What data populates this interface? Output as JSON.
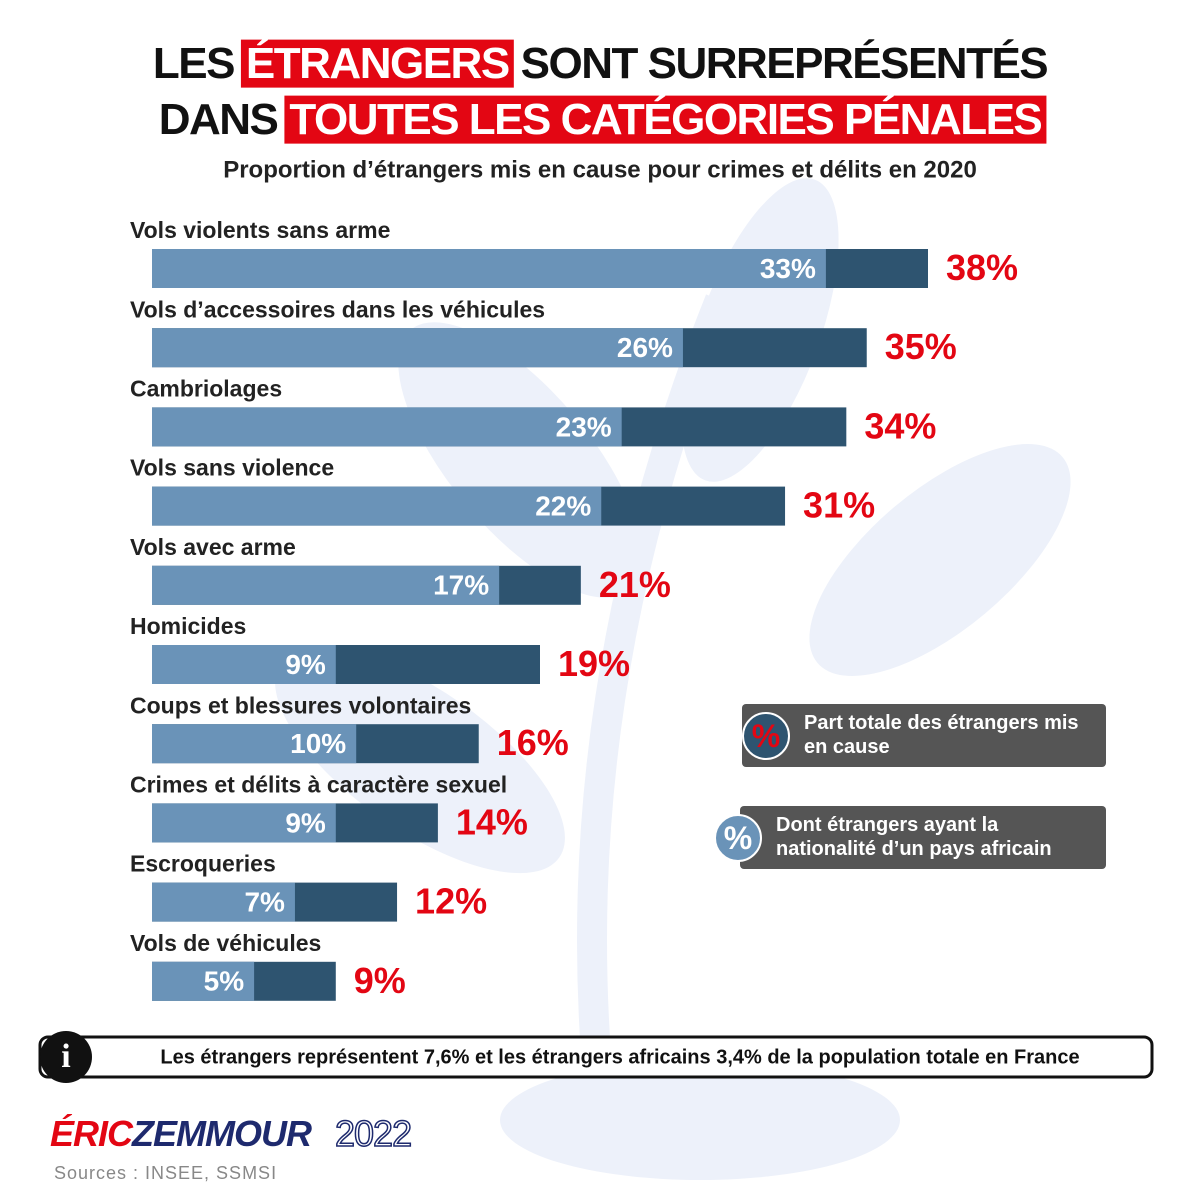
{
  "chart_data": {
    "type": "bar",
    "orientation": "horizontal",
    "title_lines": [
      [
        {
          "text": "LES",
          "highlight": false
        },
        {
          "text": "ÉTRANGERS",
          "highlight": true
        },
        {
          "text": "SONT SURREPRÉSENTÉS",
          "highlight": false
        }
      ],
      [
        {
          "text": "DANS",
          "highlight": false
        },
        {
          "text": "TOUTES LES CATÉGORIES PÉNALES",
          "highlight": true
        }
      ]
    ],
    "subtitle": "Proportion d’étrangers mis en cause pour crimes et délits en 2020",
    "categories": [
      "Vols violents sans arme",
      "Vols d’accessoires dans les véhicules",
      "Cambriolages",
      "Vols sans violence",
      "Vols avec arme",
      "Homicides",
      "Coups et blessures volontaires",
      "Crimes et délits à caractère sexuel",
      "Escroqueries",
      "Vols de véhicules"
    ],
    "series": [
      {
        "name": "Part totale des étrangers mis en cause",
        "color": "#2e5470",
        "label_color": "#e30613",
        "values": [
          38,
          35,
          34,
          31,
          21,
          19,
          16,
          14,
          12,
          9
        ],
        "value_labels": [
          "38%",
          "35%",
          "34%",
          "31%",
          "21%",
          "19%",
          "16%",
          "14%",
          "12%",
          "9%"
        ]
      },
      {
        "name": "Dont étrangers ayant la nationalité d’un pays africain",
        "color": "#6a93b8",
        "label_color": "#ffffff",
        "values": [
          33,
          26,
          23,
          22,
          17,
          9,
          10,
          9,
          7,
          5
        ],
        "value_labels": [
          "33%",
          "26%",
          "23%",
          "22%",
          "17%",
          "9%",
          "10%",
          "9%",
          "7%",
          "5%"
        ]
      }
    ],
    "legend_symbol": "%",
    "note_icon": "i",
    "note": "Les étrangers représentent 7,6% et les étrangers africains 3,4% de la population totale en France",
    "logo": {
      "first": "ÉRIC",
      "last": "ZEMMOUR",
      "year": "2022"
    },
    "sources": "Sources : INSEE, SSMSI"
  }
}
